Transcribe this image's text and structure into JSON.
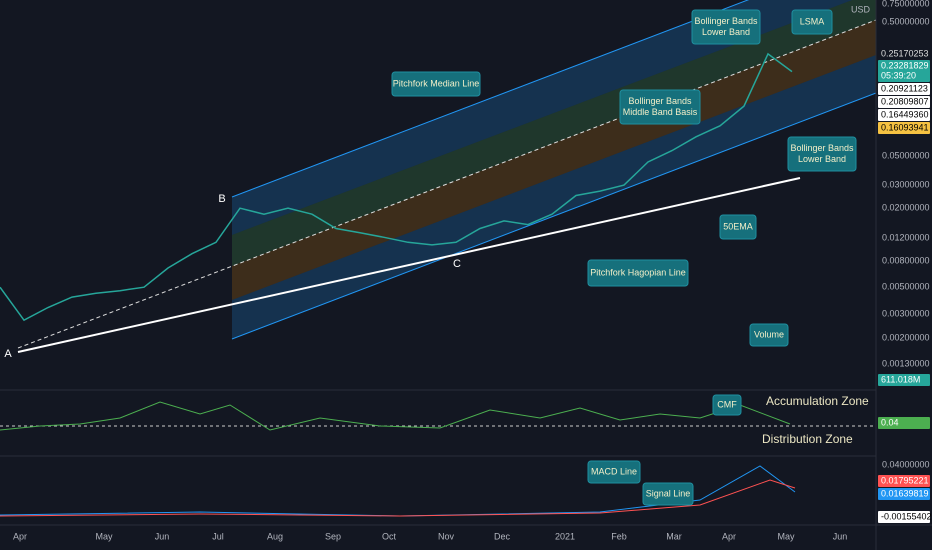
{
  "price_axis": {
    "unit": "USD",
    "ticks": [
      "0.75000000",
      "0.50000000",
      "0.05000000",
      "0.03000000",
      "0.02000000",
      "0.01200000",
      "0.00800000",
      "0.00500000",
      "0.00300000",
      "0.00200000",
      "0.00130000"
    ]
  },
  "price_badges": [
    "0.25170253",
    "0.23281829",
    "05:39:20",
    "0.20921123",
    "0.20809807",
    "0.16449360",
    "0.16093941"
  ],
  "volume_badge": "611.018M",
  "cmf_badge": "0.04",
  "macd_axis": {
    "ticks": [
      "0.04000000"
    ],
    "badges": [
      "0.01795221",
      "0.01639819",
      "-0.00155402"
    ]
  },
  "time_axis": [
    "Apr",
    "May",
    "Jun",
    "Jul",
    "Aug",
    "Sep",
    "Oct",
    "Nov",
    "Dec",
    "2021",
    "Feb",
    "Mar",
    "Apr",
    "May",
    "Jun"
  ],
  "annotations": [
    {
      "lines": [
        "Bollinger Bands",
        "Lower Band"
      ]
    },
    {
      "lines": [
        "LSMA"
      ]
    },
    {
      "lines": [
        "Pitchfork Median Line"
      ]
    },
    {
      "lines": [
        "Bollinger Bands",
        "Middle Band Basis"
      ]
    },
    {
      "lines": [
        "Bollinger Bands",
        "Lower Band"
      ]
    },
    {
      "lines": [
        "50EMA"
      ]
    },
    {
      "lines": [
        "Pitchfork Hagopian Line"
      ]
    },
    {
      "lines": [
        "Volume"
      ]
    },
    {
      "lines": [
        "CMF"
      ]
    },
    {
      "lines": [
        "MACD Line"
      ]
    },
    {
      "lines": [
        "Signal Line"
      ]
    }
  ],
  "zones": [
    "Accumulation Zone",
    "Distribution Zone"
  ],
  "points": [
    "A",
    "B",
    "C"
  ],
  "price": {
    "close": [
      0.005,
      0.0028,
      0.0035,
      0.0042,
      0.0045,
      0.0047,
      0.005,
      0.007,
      0.009,
      0.011,
      0.02,
      0.018,
      0.02,
      0.018,
      0.014,
      0.013,
      0.012,
      0.011,
      0.0105,
      0.011,
      0.014,
      0.016,
      0.015,
      0.018,
      0.025,
      0.027,
      0.03,
      0.045,
      0.055,
      0.07,
      0.085,
      0.12,
      0.3,
      0.22
    ]
  }
}
